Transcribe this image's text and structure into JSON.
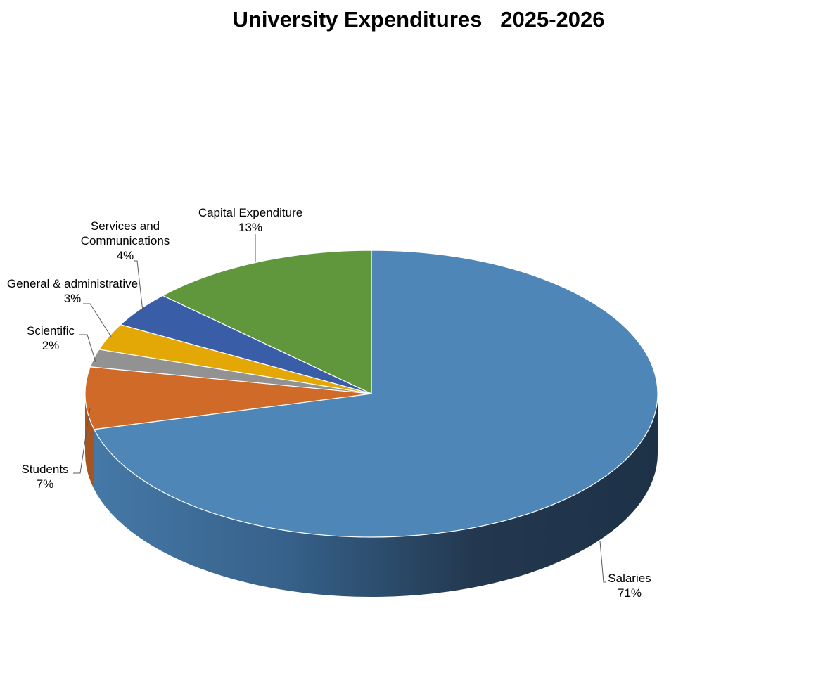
{
  "chart_data": {
    "type": "pie",
    "style": "3d",
    "title": "University Expenditures   2025-2026",
    "slices": [
      {
        "label": "Salaries",
        "value": 71,
        "value_label": "71%",
        "color": "#4f86b8"
      },
      {
        "label": "Students",
        "value": 7,
        "value_label": "7%",
        "color": "#d06a28"
      },
      {
        "label": "Scientific",
        "value": 2,
        "value_label": "2%",
        "color": "#929292"
      },
      {
        "label": "General & administrative",
        "value": 3,
        "value_label": "3%",
        "color": "#e3a806"
      },
      {
        "label": "Services and Communications",
        "value": 4,
        "value_label": "4%",
        "color": "#3a5da8"
      },
      {
        "label": "Capital Expenditure",
        "value": 13,
        "value_label": "13%",
        "color": "#60973d"
      }
    ]
  }
}
